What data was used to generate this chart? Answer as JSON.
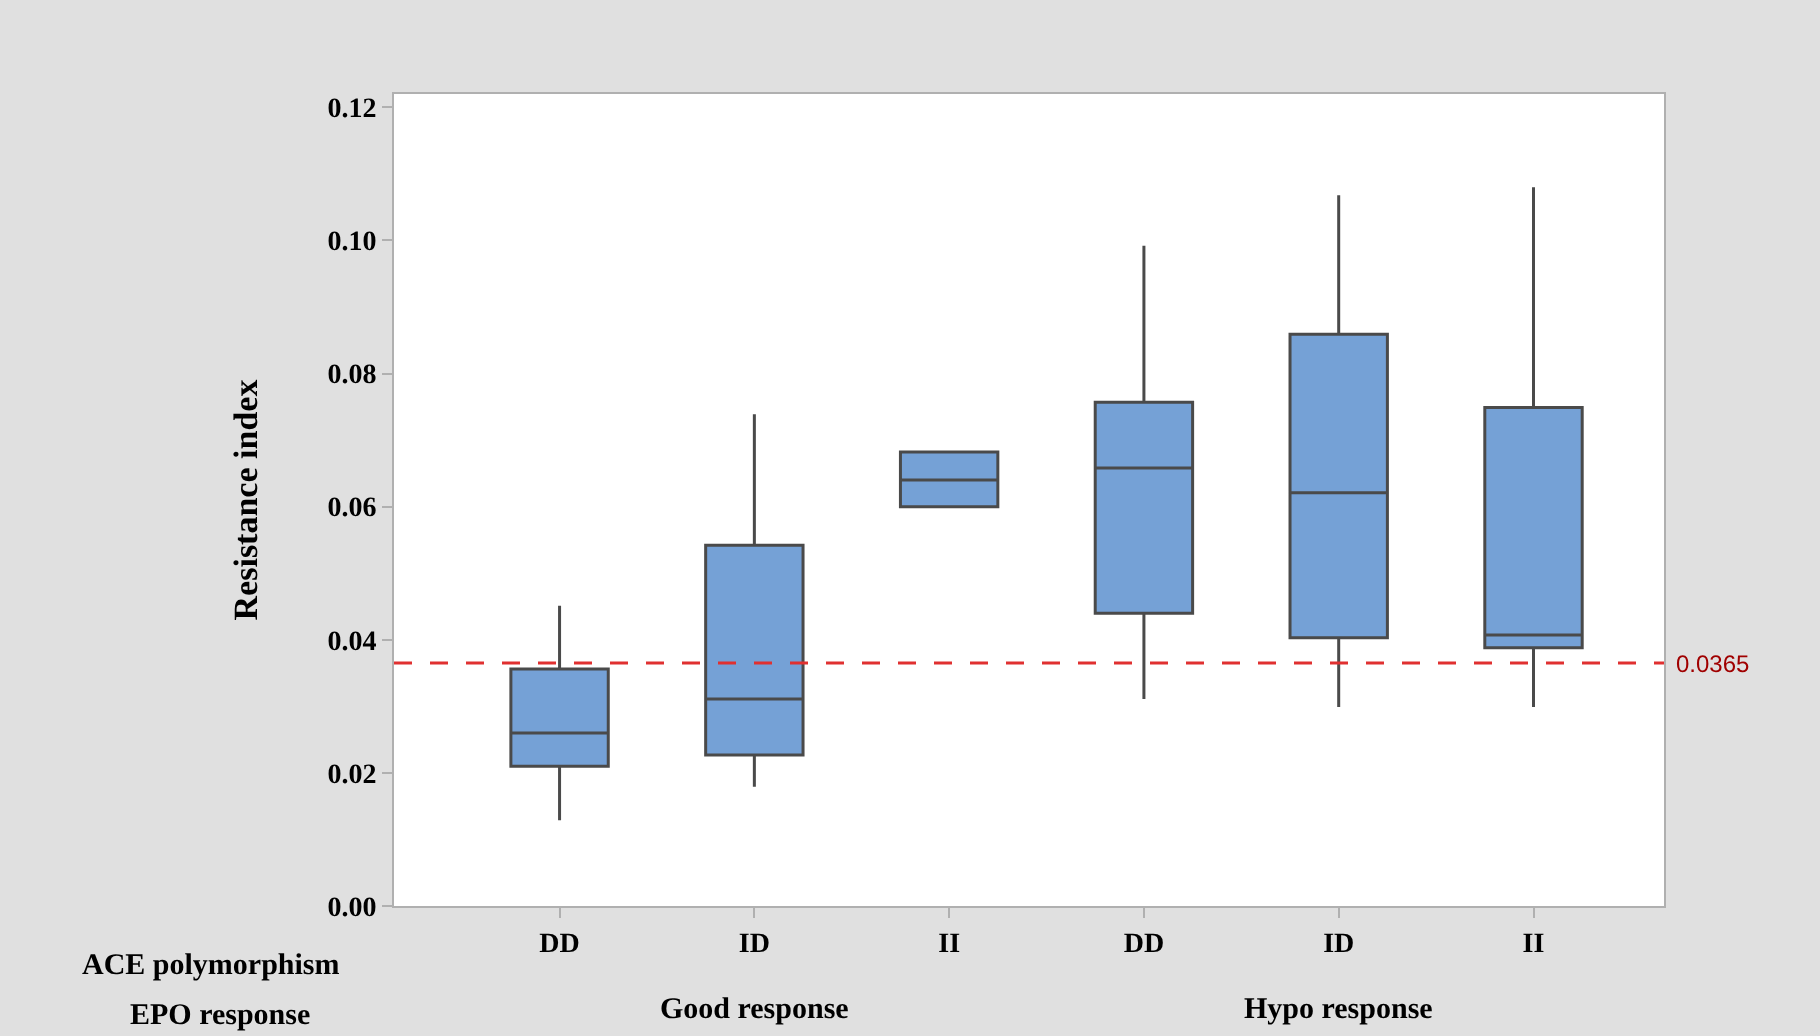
{
  "chart_data": {
    "type": "box",
    "ylabel": "Resistance index",
    "categories": [
      "DD",
      "ID",
      "II",
      "DD",
      "ID",
      "II"
    ],
    "boxes": [
      {
        "low": 0.0129,
        "q1": 0.021,
        "median": 0.026,
        "q3": 0.0356,
        "high": 0.0451
      },
      {
        "low": 0.0179,
        "q1": 0.0227,
        "median": 0.0311,
        "q3": 0.0542,
        "high": 0.0739
      },
      {
        "low": 0.06,
        "q1": 0.06,
        "median": 0.064,
        "q3": 0.0682,
        "high": 0.0682
      },
      {
        "low": 0.0311,
        "q1": 0.044,
        "median": 0.0658,
        "q3": 0.0757,
        "high": 0.0992
      },
      {
        "low": 0.0299,
        "q1": 0.0403,
        "median": 0.0621,
        "q3": 0.0859,
        "high": 0.1068
      },
      {
        "low": 0.0299,
        "q1": 0.0388,
        "median": 0.0407,
        "q3": 0.0749,
        "high": 0.108
      }
    ],
    "color": "#75a1d6",
    "ylim": [
      0,
      0.122
    ],
    "yticks": [
      {
        "value": 0,
        "label": "0.00"
      },
      {
        "value": 0.02,
        "label": "0.02"
      },
      {
        "value": 0.04,
        "label": "0.04"
      },
      {
        "value": 0.06,
        "label": "0.06"
      },
      {
        "value": 0.08,
        "label": "0.08"
      },
      {
        "value": 0.1,
        "label": "0.10"
      },
      {
        "value": 0.12,
        "label": "0.12"
      }
    ],
    "ref_lines": [
      {
        "axis": "y",
        "value": 0.0365,
        "label": "0.0365",
        "color": "#e03030",
        "line_style": "dashed"
      }
    ],
    "annotations": [
      "ACE polymorphism",
      "EPO response",
      "Good response",
      "Hypo response"
    ],
    "legend": false
  }
}
